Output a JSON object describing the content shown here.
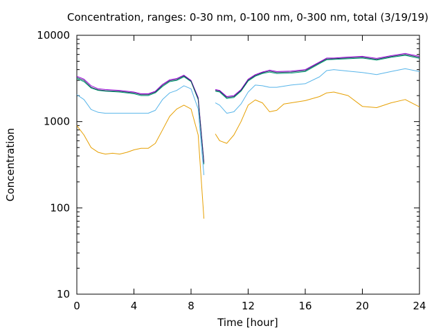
{
  "chart_data": {
    "type": "line",
    "title": "Concentration, ranges: 0-30 nm, 0-100 nm, 0-300 nm, total (3/19/19)",
    "xlabel": "Time [hour]",
    "ylabel": "Concentration",
    "xlim": [
      0,
      24
    ],
    "ylim": [
      10,
      10000
    ],
    "yscale": "log",
    "grid": false,
    "legend": "none",
    "xticks": [
      0,
      4,
      8,
      12,
      16,
      20,
      24
    ],
    "xtick_labels": [
      "0",
      "4",
      "8",
      "12",
      "16",
      "20",
      "24"
    ],
    "yticks": [
      10,
      100,
      1000,
      10000
    ],
    "ytick_labels": [
      "10",
      "100",
      "1000",
      "10000"
    ],
    "series": [
      {
        "color": "#e69f00",
        "segments": [
          [
            [
              0,
              900
            ],
            [
              0.5,
              700
            ],
            [
              1,
              500
            ],
            [
              1.5,
              440
            ],
            [
              2,
              420
            ],
            [
              2.5,
              430
            ],
            [
              3,
              420
            ],
            [
              3.5,
              440
            ],
            [
              4,
              470
            ],
            [
              4.5,
              490
            ],
            [
              5,
              490
            ],
            [
              5.5,
              560
            ],
            [
              6,
              800
            ],
            [
              6.5,
              1150
            ],
            [
              7,
              1400
            ],
            [
              7.5,
              1550
            ],
            [
              8,
              1400
            ],
            [
              8.5,
              700
            ],
            [
              8.9,
              75
            ]
          ],
          [
            [
              9.7,
              720
            ],
            [
              10,
              600
            ],
            [
              10.5,
              560
            ],
            [
              11,
              700
            ],
            [
              11.5,
              1000
            ],
            [
              12,
              1550
            ],
            [
              12.5,
              1780
            ],
            [
              13,
              1650
            ],
            [
              13.5,
              1300
            ],
            [
              14,
              1350
            ],
            [
              14.5,
              1600
            ],
            [
              15,
              1650
            ],
            [
              16,
              1750
            ],
            [
              17,
              1950
            ],
            [
              17.5,
              2150
            ],
            [
              18,
              2200
            ],
            [
              19,
              2000
            ],
            [
              20,
              1500
            ],
            [
              21,
              1450
            ],
            [
              22,
              1650
            ],
            [
              23,
              1800
            ],
            [
              24,
              1480
            ]
          ]
        ]
      },
      {
        "color": "#56b4e9",
        "segments": [
          [
            [
              0,
              2050
            ],
            [
              0.5,
              1800
            ],
            [
              1,
              1380
            ],
            [
              1.5,
              1280
            ],
            [
              2,
              1250
            ],
            [
              3,
              1250
            ],
            [
              4,
              1250
            ],
            [
              5,
              1250
            ],
            [
              5.5,
              1350
            ],
            [
              6,
              1800
            ],
            [
              6.5,
              2150
            ],
            [
              7,
              2300
            ],
            [
              7.5,
              2600
            ],
            [
              8,
              2400
            ],
            [
              8.5,
              1400
            ],
            [
              8.9,
              240
            ]
          ],
          [
            [
              9.7,
              1650
            ],
            [
              10,
              1550
            ],
            [
              10.5,
              1250
            ],
            [
              11,
              1300
            ],
            [
              11.5,
              1600
            ],
            [
              12,
              2200
            ],
            [
              12.5,
              2650
            ],
            [
              13,
              2600
            ],
            [
              13.5,
              2500
            ],
            [
              14,
              2500
            ],
            [
              15,
              2650
            ],
            [
              16,
              2750
            ],
            [
              17,
              3300
            ],
            [
              17.5,
              3900
            ],
            [
              18,
              4000
            ],
            [
              19,
              3850
            ],
            [
              20,
              3700
            ],
            [
              21,
              3500
            ],
            [
              22,
              3800
            ],
            [
              23,
              4100
            ],
            [
              24,
              3800
            ]
          ]
        ]
      },
      {
        "color": "#009e73",
        "segments": [
          [
            [
              0,
              3150
            ],
            [
              0.5,
              2900
            ],
            [
              1,
              2450
            ],
            [
              1.5,
              2300
            ],
            [
              2,
              2250
            ],
            [
              3,
              2200
            ],
            [
              4,
              2100
            ],
            [
              4.5,
              2000
            ],
            [
              5,
              2000
            ],
            [
              5.5,
              2150
            ],
            [
              6,
              2550
            ],
            [
              6.5,
              2900
            ],
            [
              7,
              3000
            ],
            [
              7.5,
              3300
            ],
            [
              8,
              2900
            ],
            [
              8.5,
              1800
            ],
            [
              8.9,
              320
            ]
          ],
          [
            [
              9.7,
              2250
            ],
            [
              10,
              2200
            ],
            [
              10.5,
              1850
            ],
            [
              11,
              1900
            ],
            [
              11.5,
              2250
            ],
            [
              12,
              2950
            ],
            [
              12.5,
              3350
            ],
            [
              13,
              3600
            ],
            [
              13.5,
              3750
            ],
            [
              14,
              3600
            ],
            [
              15,
              3650
            ],
            [
              16,
              3800
            ],
            [
              17,
              4700
            ],
            [
              17.5,
              5200
            ],
            [
              18,
              5250
            ],
            [
              19,
              5350
            ],
            [
              20,
              5450
            ],
            [
              21,
              5150
            ],
            [
              22,
              5550
            ],
            [
              23,
              5850
            ],
            [
              24,
              5400
            ]
          ]
        ]
      },
      {
        "color": "#9400d3",
        "segments": [
          [
            [
              0,
              3350
            ],
            [
              0.5,
              3100
            ],
            [
              1,
              2600
            ],
            [
              1.5,
              2400
            ],
            [
              2,
              2350
            ],
            [
              3,
              2300
            ],
            [
              4,
              2200
            ],
            [
              4.5,
              2100
            ],
            [
              5,
              2100
            ],
            [
              5.5,
              2250
            ],
            [
              6,
              2700
            ],
            [
              6.5,
              3050
            ],
            [
              7,
              3150
            ],
            [
              7.5,
              3450
            ],
            [
              8,
              3000
            ],
            [
              8.5,
              1900
            ],
            [
              8.9,
              340
            ]
          ],
          [
            [
              9.7,
              2350
            ],
            [
              10,
              2300
            ],
            [
              10.5,
              1950
            ],
            [
              11,
              2000
            ],
            [
              11.5,
              2350
            ],
            [
              12,
              3100
            ],
            [
              12.5,
              3500
            ],
            [
              13,
              3750
            ],
            [
              13.5,
              3950
            ],
            [
              14,
              3800
            ],
            [
              15,
              3850
            ],
            [
              16,
              4000
            ],
            [
              17,
              4900
            ],
            [
              17.5,
              5450
            ],
            [
              18,
              5450
            ],
            [
              19,
              5600
            ],
            [
              20,
              5700
            ],
            [
              21,
              5400
            ],
            [
              22,
              5800
            ],
            [
              23,
              6150
            ],
            [
              24,
              5700
            ]
          ]
        ]
      },
      {
        "color": "#1f3a5f",
        "segments": [
          [
            [
              0,
              3250
            ],
            [
              0.5,
              3000
            ],
            [
              1,
              2500
            ],
            [
              1.5,
              2330
            ],
            [
              2,
              2280
            ],
            [
              3,
              2240
            ],
            [
              4,
              2150
            ],
            [
              4.5,
              2050
            ],
            [
              5,
              2050
            ],
            [
              5.5,
              2200
            ],
            [
              6,
              2620
            ],
            [
              6.5,
              2970
            ],
            [
              7,
              3070
            ],
            [
              7.5,
              3380
            ],
            [
              8,
              2950
            ],
            [
              8.5,
              1850
            ],
            [
              8.9,
              330
            ]
          ],
          [
            [
              9.7,
              2300
            ],
            [
              10,
              2250
            ],
            [
              10.5,
              1900
            ],
            [
              11,
              1950
            ],
            [
              11.5,
              2300
            ],
            [
              12,
              3020
            ],
            [
              12.5,
              3420
            ],
            [
              13,
              3680
            ],
            [
              13.5,
              3850
            ],
            [
              14,
              3700
            ],
            [
              15,
              3750
            ],
            [
              16,
              3900
            ],
            [
              17,
              4800
            ],
            [
              17.5,
              5320
            ],
            [
              18,
              5350
            ],
            [
              19,
              5470
            ],
            [
              20,
              5570
            ],
            [
              21,
              5270
            ],
            [
              22,
              5670
            ],
            [
              23,
              6000
            ],
            [
              24,
              5550
            ]
          ]
        ]
      }
    ]
  }
}
